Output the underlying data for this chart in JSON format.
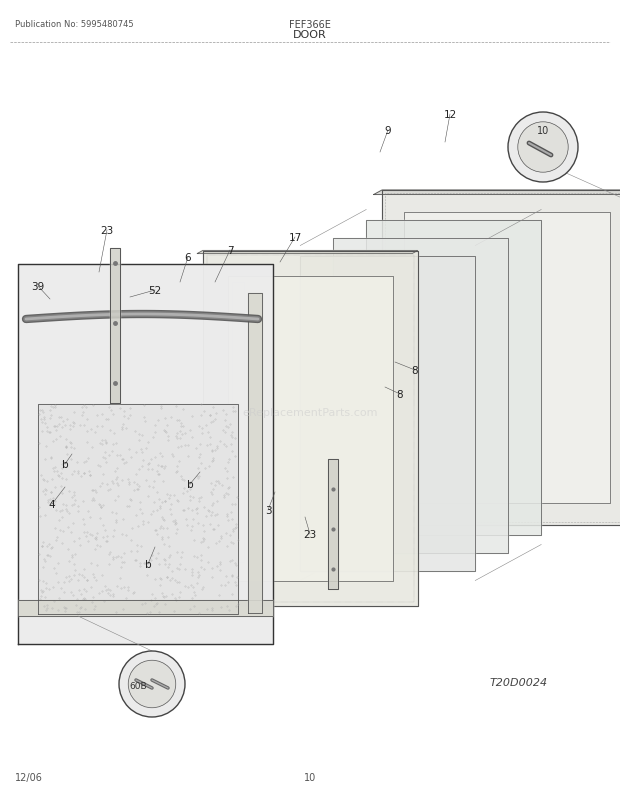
{
  "pub_no": "Publication No: 5995480745",
  "model": "FEF366E",
  "section": "DOOR",
  "diagram_code": "T20D0024",
  "date": "12/06",
  "page": "10",
  "bg_color": "#ffffff",
  "watermark": "eReplacementParts.com"
}
